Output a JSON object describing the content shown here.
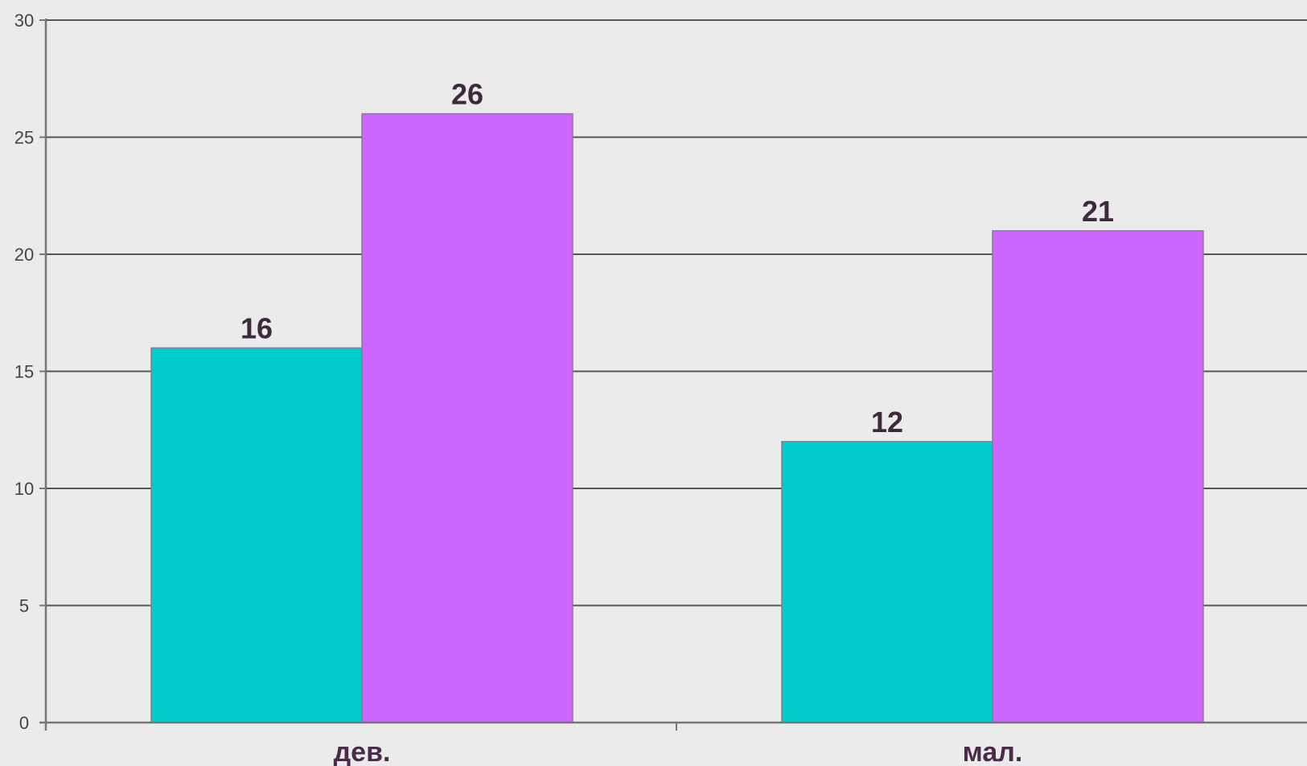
{
  "colors": {
    "background": "#ebebeb",
    "grid": "#555555",
    "axis": "#777777",
    "series_1": "#00cccc",
    "series_2": "#cc66ff"
  },
  "chart_data": {
    "type": "bar",
    "title": "",
    "xlabel": "",
    "ylabel": "",
    "categories": [
      "дев.",
      "мал."
    ],
    "series": [
      {
        "values": [
          16,
          12
        ],
        "color": "#00cccc"
      },
      {
        "values": [
          26,
          21
        ],
        "color": "#cc66ff"
      }
    ],
    "ylim": [
      0,
      30
    ],
    "yticks": [
      0,
      5,
      10,
      15,
      20,
      25,
      30
    ],
    "grid": true,
    "legend": "none",
    "data_labels": true
  }
}
